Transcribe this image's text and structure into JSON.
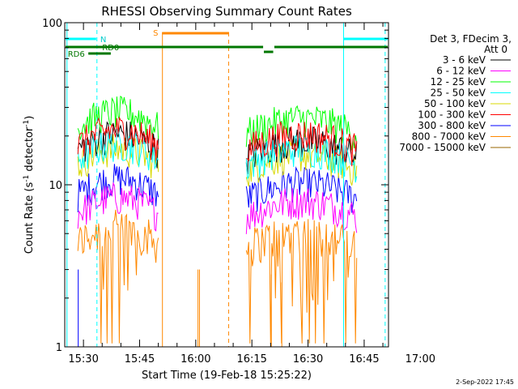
{
  "chart_data": {
    "type": "line",
    "title": "RHESSI Observing Summary Count Rates",
    "xlabel": "Start Time (19-Feb-18 15:25:22)",
    "ylabel_main": "Count Rate (s",
    "ylabel_sup": "-1",
    "ylabel_mid": " detector",
    "ylabel_end": ")",
    "x_range_minutes": [
      15.0,
      101.5
    ],
    "y_scale": "log",
    "ylim": [
      1,
      100
    ],
    "x_ticks": [
      {
        "label": "15:30",
        "min": 20
      },
      {
        "label": "15:45",
        "min": 35
      },
      {
        "label": "16:00",
        "min": 50
      },
      {
        "label": "16:15",
        "min": 65
      },
      {
        "label": "16:30",
        "min": 80
      },
      {
        "label": "16:45",
        "min": 95
      },
      {
        "label": "17:00",
        "min": 110
      }
    ],
    "y_ticks": [
      {
        "label": "100",
        "value": 100
      },
      {
        "label": "10",
        "value": 10
      },
      {
        "label": "1",
        "value": 1
      }
    ],
    "legend_header": [
      "Det 3, FDecim 3,",
      "Att 0"
    ],
    "series": [
      {
        "name": "3 - 6 keV",
        "color": "#000000",
        "segments": [
          [
            18.5,
            40.0,
            16
          ],
          [
            63.5,
            93.0,
            14.5
          ]
        ]
      },
      {
        "name": "6 - 12 keV",
        "color": "#ff00ff",
        "segments": [
          [
            18.5,
            40.0,
            6.5
          ],
          [
            63.5,
            93.0,
            6.2
          ]
        ]
      },
      {
        "name": "12 - 25 keV",
        "color": "#00ff00",
        "segments": [
          [
            18.5,
            40.0,
            22
          ],
          [
            63.5,
            93.0,
            20
          ]
        ]
      },
      {
        "name": "25 - 50 keV",
        "color": "#00ffff",
        "segments": [
          [
            18.5,
            40.0,
            14
          ],
          [
            63.5,
            93.0,
            13
          ]
        ]
      },
      {
        "name": "50 - 100 keV",
        "color": "#d8d800",
        "segments": [
          [
            18.5,
            40.0,
            13
          ],
          [
            63.5,
            93.0,
            12
          ]
        ]
      },
      {
        "name": "100 - 300 keV",
        "color": "#ff0000",
        "segments": [
          [
            18.5,
            40.0,
            17
          ],
          [
            63.5,
            93.0,
            16
          ]
        ]
      },
      {
        "name": "300 - 800 keV",
        "color": "#0000ff",
        "segments": [
          [
            18.5,
            40.0,
            8.5
          ],
          [
            63.5,
            93.0,
            8
          ]
        ]
      },
      {
        "name": "800 - 7000 keV",
        "color": "#ff8800",
        "segments": [
          [
            18.5,
            40.0,
            4.5
          ],
          [
            63.5,
            93.0,
            4.2
          ]
        ]
      },
      {
        "name": "7000 - 15000 keV",
        "color": "#996600",
        "segments": []
      }
    ],
    "flag_labels": {
      "n": "N",
      "rd0": "RD0",
      "rd6": "RD6",
      "s": "S"
    }
  }
}
